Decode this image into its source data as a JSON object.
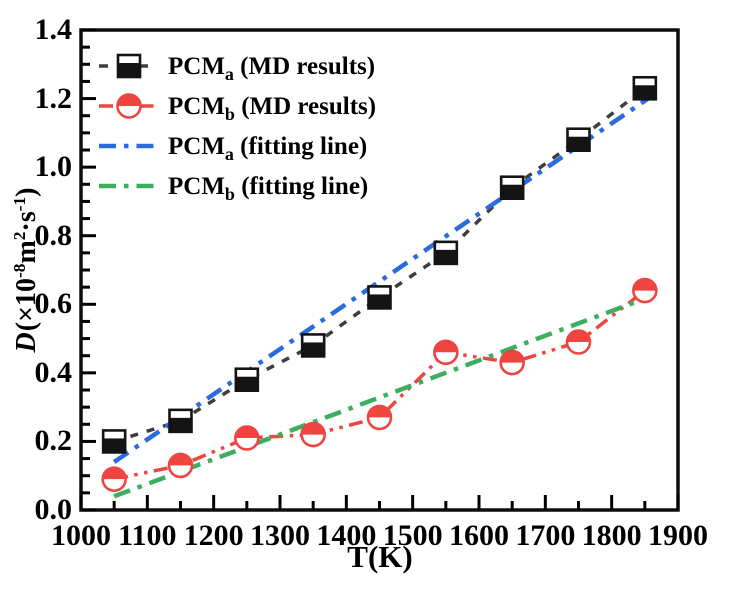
{
  "figure": {
    "background": "#ffffff",
    "frame_color": "#0d0d0d",
    "ylabel_parts": [
      {
        "text": "D",
        "italic": true
      },
      {
        "text": "(×10"
      },
      {
        "text": "-8",
        "sup": true
      },
      {
        "text": "m"
      },
      {
        "text": "2",
        "sup": true
      },
      {
        "text": "·s"
      },
      {
        "text": "-1",
        "sup": true
      },
      {
        "text": ")"
      }
    ]
  },
  "chart_data": {
    "type": "line",
    "title": "",
    "xlabel": "T(K)",
    "ylabel": "D(×10-8m2·s-1)",
    "xlim": [
      1000,
      1900
    ],
    "ylim": [
      0.0,
      1.4
    ],
    "x_major_step": 100,
    "x_minor_step": 50,
    "y_major_step": 0.2,
    "y_minor_step": 0.05,
    "x_major_ticks": [
      1000,
      1100,
      1200,
      1300,
      1400,
      1500,
      1600,
      1700,
      1800,
      1900
    ],
    "y_major_ticks": [
      "0.0",
      "0.2",
      "0.4",
      "0.6",
      "0.8",
      "1.0",
      "1.2",
      "1.4"
    ],
    "grid": false,
    "legend_position": "upper-left-inside",
    "x": [
      1050,
      1150,
      1250,
      1350,
      1450,
      1550,
      1650,
      1750,
      1850
    ],
    "series": [
      {
        "name": "PCMa (MD results)",
        "kind": "data",
        "values": [
          0.2,
          0.26,
          0.38,
          0.48,
          0.62,
          0.75,
          0.94,
          1.08,
          1.23
        ],
        "color": "#3e3e3e",
        "line": "dashed",
        "marker": "half-square",
        "marker_color": "#141414"
      },
      {
        "name": "PCMb (MD results)",
        "kind": "data",
        "values": [
          0.09,
          0.13,
          0.21,
          0.22,
          0.27,
          0.46,
          0.43,
          0.49,
          0.64
        ],
        "color": "#ee4541",
        "line": "dash-dot-dot",
        "marker": "half-circle",
        "marker_color": "#ee4541"
      },
      {
        "name": "PCMa (fitting line)",
        "kind": "fit",
        "x": [
          1050,
          1855
        ],
        "y": [
          0.14,
          1.2
        ],
        "color": "#2a6be0",
        "line": "dash-dot"
      },
      {
        "name": "PCMb (fitting line)",
        "kind": "fit",
        "x": [
          1050,
          1855
        ],
        "y": [
          0.04,
          0.62
        ],
        "color": "#3dae60",
        "line": "dash-dot"
      }
    ]
  },
  "legend": {
    "items": [
      {
        "prefix": "PCM",
        "sub": "a",
        "rest": " (MD results)",
        "series": 0
      },
      {
        "prefix": "PCM",
        "sub": "b",
        "rest": " (MD results)",
        "series": 1
      },
      {
        "prefix": "PCM",
        "sub": "a",
        "rest": " (fitting line)",
        "series": 2
      },
      {
        "prefix": "PCM",
        "sub": "b",
        "rest": " (fitting line)",
        "series": 3
      }
    ]
  }
}
